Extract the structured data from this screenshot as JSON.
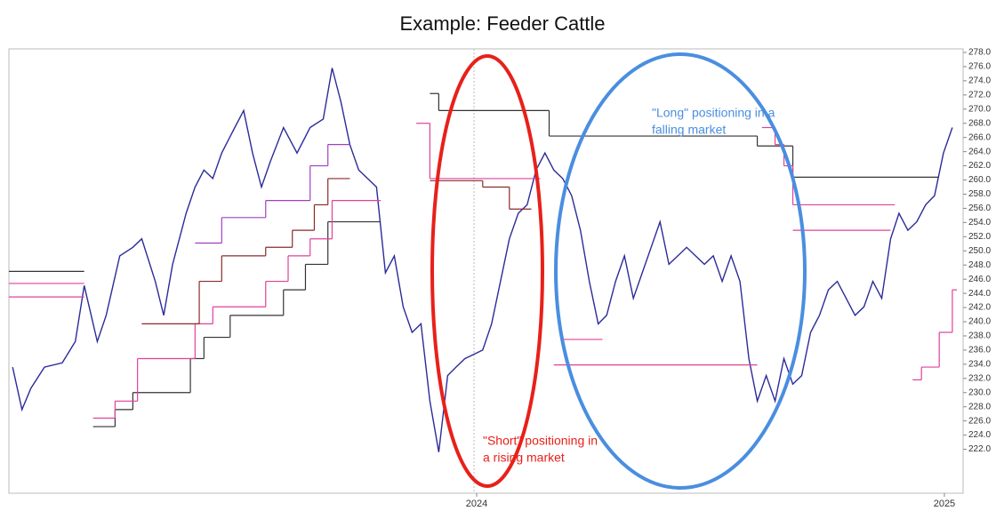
{
  "chart_data": {
    "type": "line",
    "title": "Example: Feeder Cattle",
    "annotations": [
      {
        "lines": [
          "\"Long\" positioning in a",
          "falling market"
        ],
        "color": "#4a8ee0"
      },
      {
        "lines": [
          "\"Short\" positioning in",
          "a rising market"
        ],
        "color": "#e8201a"
      }
    ],
    "xlim": [
      2023.0,
      2025.04
    ],
    "xticks": [
      2024,
      2025
    ],
    "ylim": [
      215.8,
      278.5
    ],
    "yticks": [
      {
        "value": 222,
        "label": "222.0"
      },
      {
        "value": 224,
        "label": "224.0"
      },
      {
        "value": 226,
        "label": "226.0"
      },
      {
        "value": 228,
        "label": "228.0"
      },
      {
        "value": 230,
        "label": "230.0"
      },
      {
        "value": 232,
        "label": "232.0"
      },
      {
        "value": 234,
        "label": "234.0"
      },
      {
        "value": 236,
        "label": "236.0"
      },
      {
        "value": 238,
        "label": "238.0"
      },
      {
        "value": 240,
        "label": "240.0"
      },
      {
        "value": 242,
        "label": "242.0"
      },
      {
        "value": 244,
        "label": "244.0"
      },
      {
        "value": 246,
        "label": "246.0"
      },
      {
        "value": 248,
        "label": "248.0"
      },
      {
        "value": 250,
        "label": "250.0"
      },
      {
        "value": 252,
        "label": "252.0"
      },
      {
        "value": 254,
        "label": "254.0"
      },
      {
        "value": 256,
        "label": "256.0"
      },
      {
        "value": 258,
        "label": "258.0"
      },
      {
        "value": 260,
        "label": "260.0"
      },
      {
        "value": 262,
        "label": "262.0"
      },
      {
        "value": 264,
        "label": "264.0"
      },
      {
        "value": 266,
        "label": "266.0"
      },
      {
        "value": 268,
        "label": "268.0"
      },
      {
        "value": 270,
        "label": "270.0"
      },
      {
        "value": 272,
        "label": "272.0"
      },
      {
        "value": 274,
        "label": "274.0"
      },
      {
        "value": 276,
        "label": "276.0"
      },
      {
        "value": 278,
        "label": "278.0"
      }
    ],
    "series": [
      {
        "color": "#2b2b9a",
        "step": false,
        "x": [
          2023.008,
          2023.028,
          2023.047,
          2023.076,
          2023.114,
          2023.142,
          2023.161,
          2023.189,
          2023.208,
          2023.237,
          2023.265,
          2023.284,
          2023.313,
          2023.331,
          2023.35,
          2023.379,
          2023.398,
          2023.417,
          2023.436,
          2023.455,
          2023.483,
          2023.502,
          2023.521,
          2023.54,
          2023.559,
          2023.587,
          2023.616,
          2023.644,
          2023.672,
          2023.691,
          2023.71,
          2023.729,
          2023.748,
          2023.767,
          2023.786,
          2023.805,
          2023.824,
          2023.843,
          2023.862,
          2023.881,
          2023.9,
          2023.919,
          2023.938,
          2023.956,
          2023.975,
          2023.994,
          2024.013,
          2024.032,
          2024.051,
          2024.07,
          2024.089,
          2024.108,
          2024.127,
          2024.146,
          2024.165,
          2024.184,
          2024.203,
          2024.222,
          2024.241,
          2024.26,
          2024.278,
          2024.297,
          2024.316,
          2024.335,
          2024.354,
          2024.373,
          2024.392,
          2024.411,
          2024.43,
          2024.449,
          2024.468,
          2024.487,
          2024.506,
          2024.525,
          2024.544,
          2024.563,
          2024.582,
          2024.6,
          2024.619,
          2024.638,
          2024.657,
          2024.676,
          2024.695,
          2024.714,
          2024.733,
          2024.752,
          2024.771,
          2024.79,
          2024.809,
          2024.828,
          2024.847,
          2024.866,
          2024.885,
          2024.903,
          2024.922,
          2024.941,
          2024.96,
          2024.979,
          2024.998,
          2025.017
        ],
        "values": [
          233.6,
          227.6,
          230.6,
          233.6,
          234.2,
          237.2,
          245.1,
          237.2,
          240.9,
          249.3,
          250.5,
          251.7,
          245.7,
          240.9,
          248.1,
          255.3,
          259.0,
          261.4,
          260.2,
          263.8,
          267.4,
          269.8,
          263.8,
          259.0,
          262.6,
          267.4,
          263.8,
          267.4,
          268.6,
          275.8,
          271.0,
          265.0,
          261.4,
          260.2,
          259.0,
          246.9,
          249.3,
          242.1,
          238.5,
          239.7,
          228.8,
          221.6,
          232.4,
          233.6,
          234.8,
          235.4,
          236.0,
          239.7,
          245.7,
          251.7,
          255.3,
          256.5,
          261.4,
          263.8,
          261.4,
          260.2,
          257.8,
          252.9,
          245.7,
          239.7,
          240.9,
          245.7,
          249.3,
          243.3,
          246.9,
          250.5,
          254.1,
          248.1,
          249.3,
          250.5,
          249.3,
          248.1,
          249.3,
          245.7,
          249.3,
          245.7,
          234.8,
          228.8,
          232.4,
          228.8,
          234.8,
          231.2,
          232.4,
          238.5,
          240.9,
          244.5,
          245.7,
          243.3,
          240.9,
          242.1,
          245.7,
          243.3,
          251.7,
          255.3,
          252.9,
          254.1,
          256.5,
          257.8,
          263.8,
          267.4
        ]
      },
      {
        "color": "#333333",
        "step": true,
        "x": [
          2023.0,
          2023.161
        ],
        "values": [
          247.1,
          247.1
        ]
      },
      {
        "color": "#e0409a",
        "step": true,
        "x": [
          2023.0,
          2023.161
        ],
        "values": [
          245.4,
          245.4
        ]
      },
      {
        "color": "#e0409a",
        "step": true,
        "x": [
          2023.0,
          2023.161
        ],
        "values": [
          243.5,
          243.5
        ]
      },
      {
        "color": "#333333",
        "step": true,
        "x": [
          2023.18,
          2023.227,
          2023.265,
          2023.388,
          2023.417,
          2023.473,
          2023.587,
          2023.634,
          2023.682,
          2023.795
        ],
        "values": [
          225.2,
          227.6,
          230.0,
          234.8,
          237.8,
          240.9,
          244.5,
          248.1,
          254.1,
          254.1
        ]
      },
      {
        "color": "#e0409a",
        "step": true,
        "x": [
          2023.18,
          2023.227,
          2023.275,
          2023.398,
          2023.436,
          2023.549,
          2023.597,
          2023.644,
          2023.691,
          2023.795
        ],
        "values": [
          226.4,
          228.8,
          234.8,
          239.7,
          242.1,
          245.7,
          249.3,
          251.7,
          257.1,
          257.1
        ]
      },
      {
        "color": "#8b2a2a",
        "step": true,
        "x": [
          2023.284,
          2023.407,
          2023.455,
          2023.549,
          2023.606,
          2023.653,
          2023.682,
          2023.729
        ],
        "values": [
          239.7,
          245.7,
          249.3,
          250.5,
          252.9,
          256.5,
          260.2,
          260.2
        ]
      },
      {
        "color": "#a040c0",
        "step": true,
        "x": [
          2023.398,
          2023.455,
          2023.549,
          2023.644,
          2023.682,
          2023.729
        ],
        "values": [
          251.1,
          254.7,
          257.1,
          262.0,
          265.0,
          265.0
        ]
      },
      {
        "color": "#333333",
        "step": true,
        "x": [
          2023.9,
          2023.919,
          2024.155,
          2024.6,
          2024.676,
          2024.988
        ],
        "values": [
          272.2,
          269.8,
          266.2,
          264.8,
          260.4,
          260.4
        ]
      },
      {
        "color": "#e0409a",
        "step": true,
        "x": [
          2023.871,
          2023.9,
          2024.136
        ],
        "values": [
          268.0,
          260.2,
          260.2
        ]
      },
      {
        "color": "#8b2a2a",
        "step": true,
        "x": [
          2023.9,
          2024.013,
          2024.07,
          2024.117
        ],
        "values": [
          259.9,
          259.0,
          255.9,
          255.9
        ]
      },
      {
        "color": "#e0409a",
        "step": true,
        "x": [
          2024.165,
          2024.6
        ],
        "values": [
          233.9,
          233.9
        ]
      },
      {
        "color": "#e0409a",
        "step": true,
        "x": [
          2024.184,
          2024.269
        ],
        "values": [
          237.5,
          237.5
        ]
      },
      {
        "color": "#e0409a",
        "step": true,
        "x": [
          2024.61,
          2024.638,
          2024.657,
          2024.676,
          2024.894
        ],
        "values": [
          267.4,
          265.0,
          262.0,
          256.5,
          256.5
        ]
      },
      {
        "color": "#e0409a",
        "step": true,
        "x": [
          2024.676,
          2024.885
        ],
        "values": [
          252.9,
          252.9
        ]
      },
      {
        "color": "#e0409a",
        "step": true,
        "x": [
          2024.932,
          2024.951,
          2024.989,
          2025.017,
          2025.027
        ],
        "values": [
          231.8,
          233.6,
          238.5,
          244.5,
          244.5
        ]
      }
    ]
  }
}
